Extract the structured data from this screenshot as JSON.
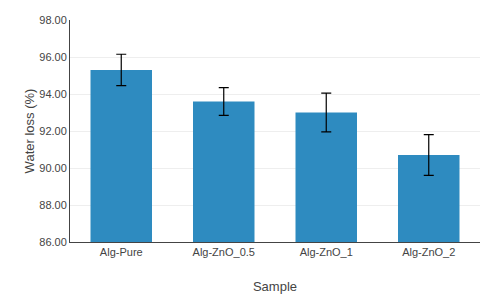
{
  "chart_data": {
    "type": "bar",
    "categories": [
      "Alg-Pure",
      "Alg-ZnO_0.5",
      "Alg-ZnO_1",
      "Alg-ZnO_2"
    ],
    "values": [
      95.3,
      93.6,
      93.0,
      90.7
    ],
    "errors": [
      0.85,
      0.75,
      1.05,
      1.1
    ],
    "color": "#2e8bc0",
    "xlabel": "Sample",
    "ylabel": "Water loss (%)",
    "ylim": [
      86.0,
      98.0
    ],
    "yticks": [
      {
        "value": 86,
        "label": "86.00"
      },
      {
        "value": 88,
        "label": "88.00"
      },
      {
        "value": 90,
        "label": "90.00"
      },
      {
        "value": 92,
        "label": "92.00"
      },
      {
        "value": 94,
        "label": "94.00"
      },
      {
        "value": 96,
        "label": "96.00"
      },
      {
        "value": 98,
        "label": "98.00"
      }
    ],
    "grid": true
  }
}
